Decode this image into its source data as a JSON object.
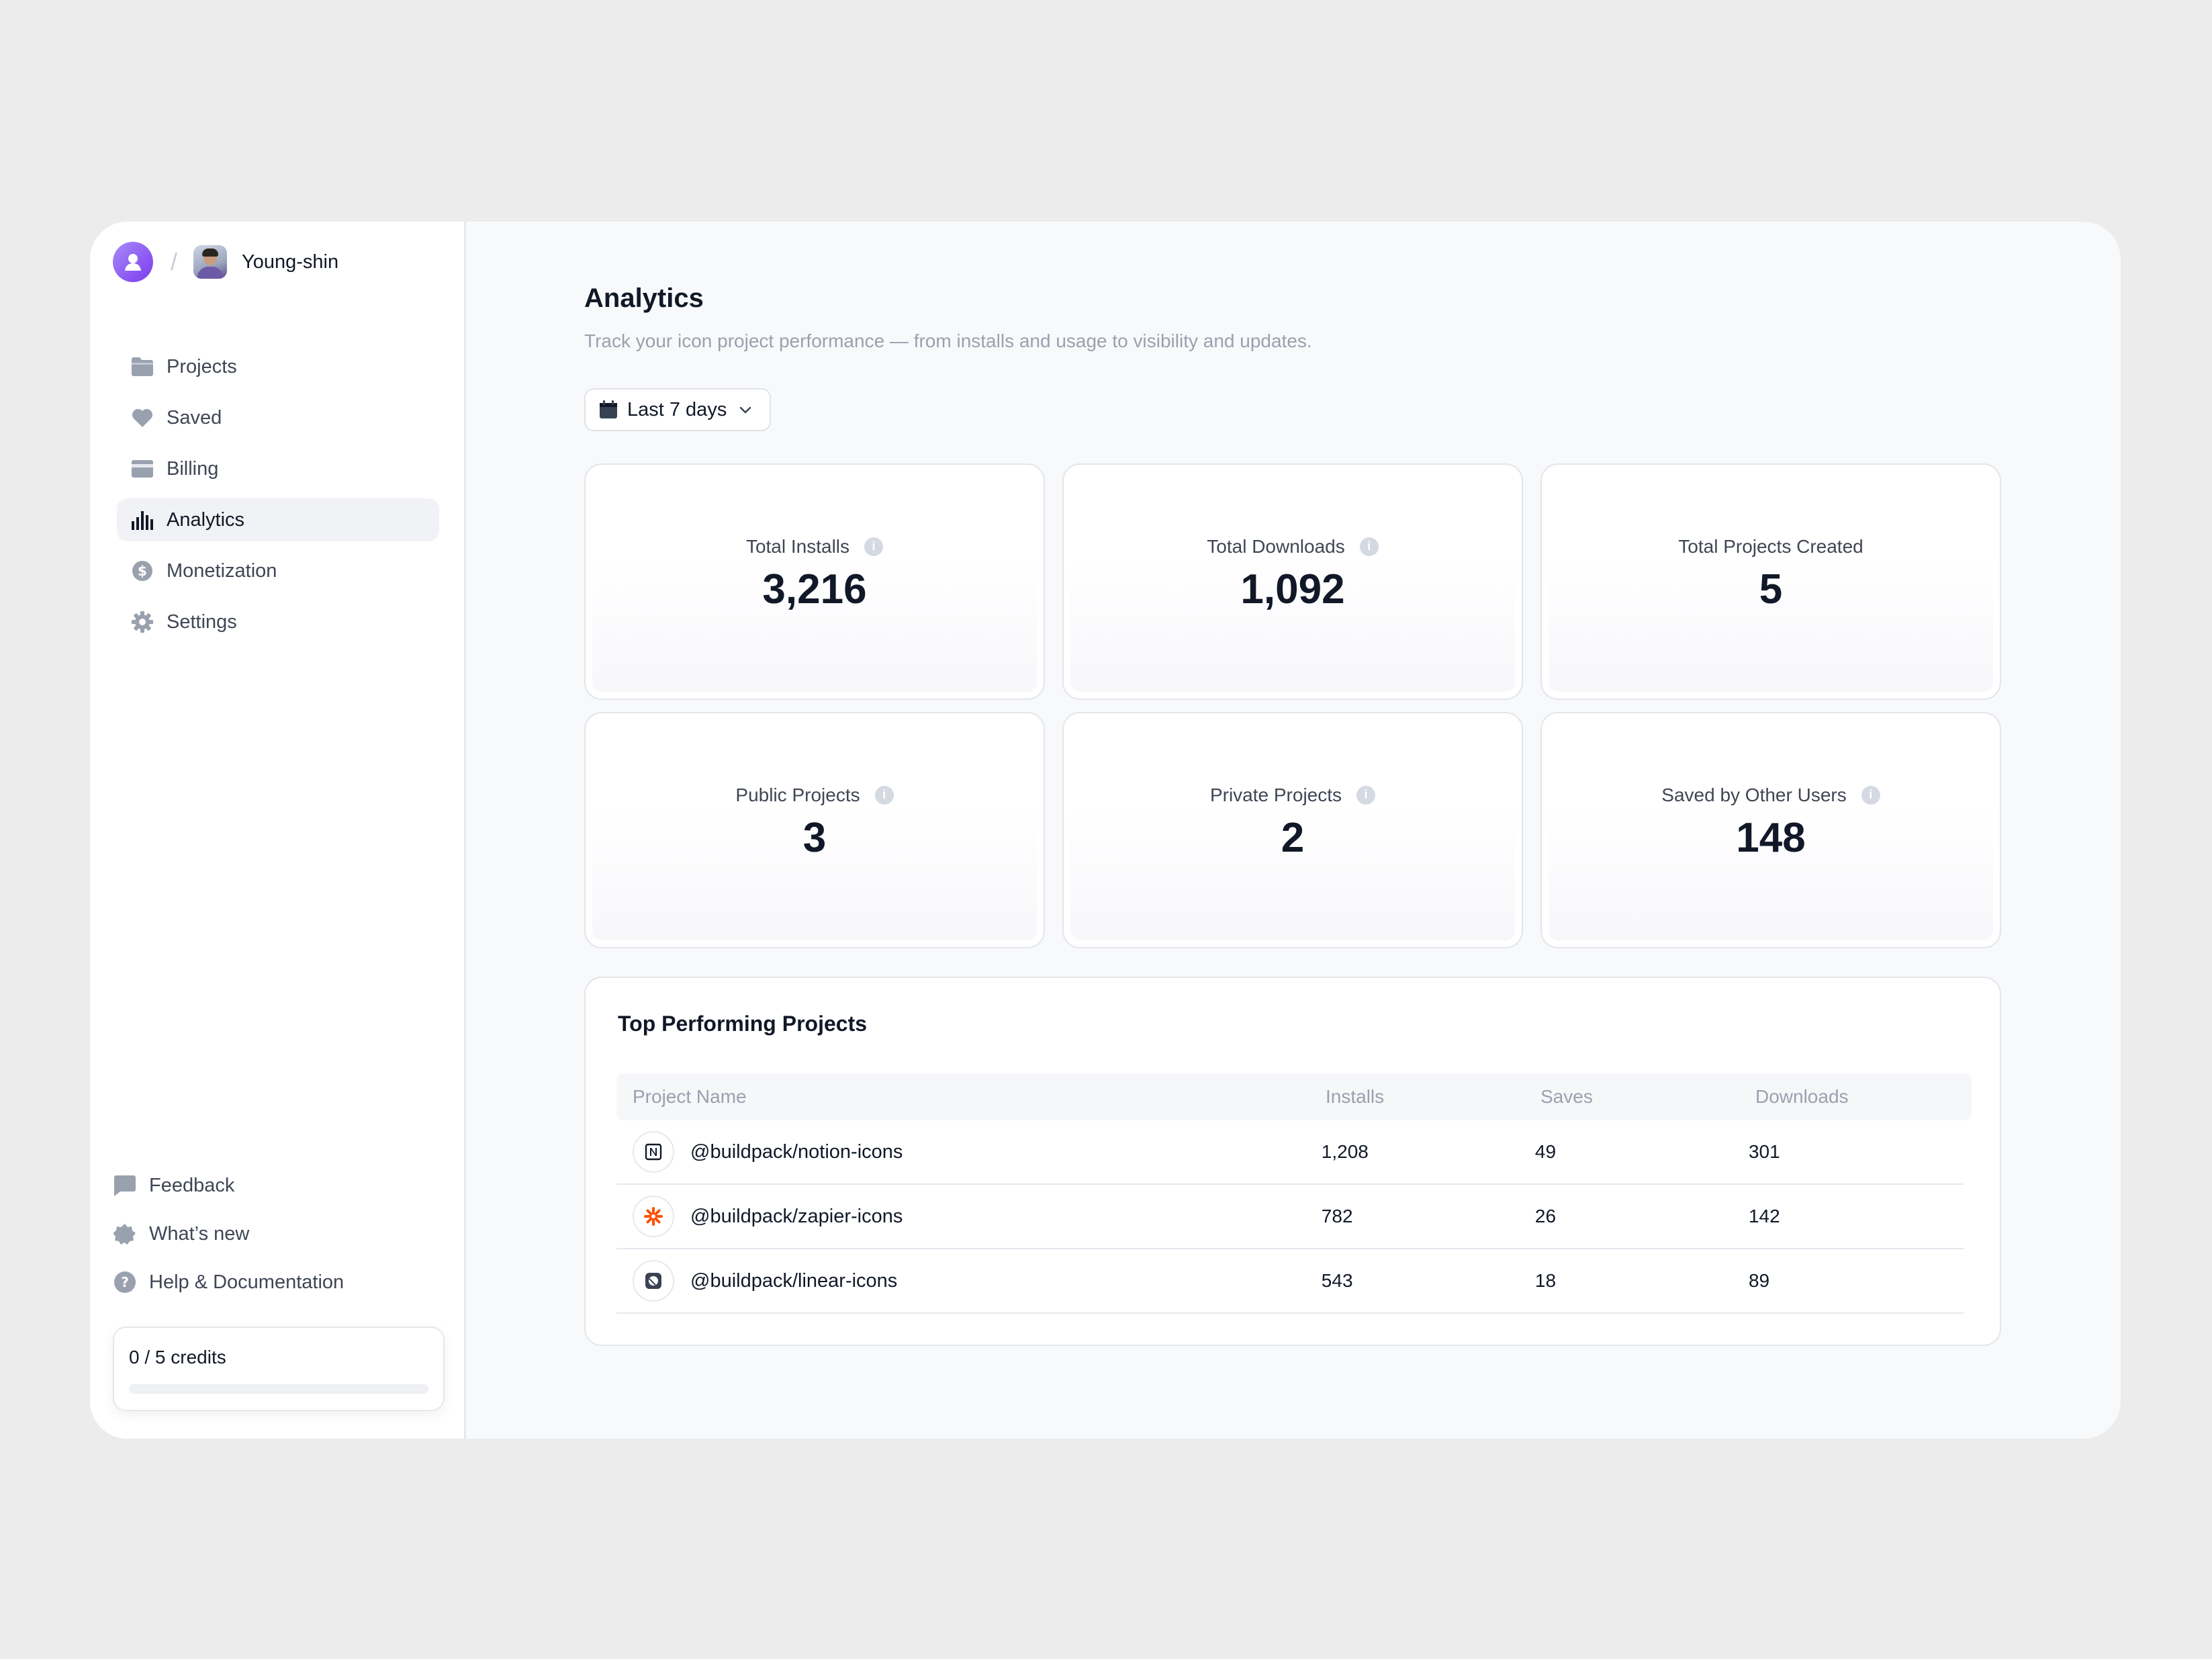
{
  "user": {
    "name": "Young-shin",
    "separator": "/"
  },
  "nav": [
    {
      "label": "Projects",
      "icon": "folder-icon"
    },
    {
      "label": "Saved",
      "icon": "heart-icon"
    },
    {
      "label": "Billing",
      "icon": "credit-card-icon"
    },
    {
      "label": "Analytics",
      "icon": "bar-chart-icon",
      "active": true
    },
    {
      "label": "Monetization",
      "icon": "dollar-circle-icon"
    },
    {
      "label": "Settings",
      "icon": "gear-icon"
    }
  ],
  "bottom_links": [
    {
      "label": "Feedback",
      "icon": "chat-icon"
    },
    {
      "label": "What’s new",
      "icon": "badge-star-icon"
    },
    {
      "label": "Help & Documentation",
      "icon": "help-circle-icon"
    }
  ],
  "credits": {
    "label": "0 / 5 credits",
    "used": 0,
    "total": 5
  },
  "page": {
    "title": "Analytics",
    "subtitle": "Track your icon project performance — from installs and usage to visibility and updates.",
    "range_label": "Last 7 days"
  },
  "stats": [
    {
      "label": "Total Installs",
      "value": "3,216",
      "info": true
    },
    {
      "label": "Total Downloads",
      "value": "1,092",
      "info": true
    },
    {
      "label": "Total Projects Created",
      "value": "5",
      "info": false
    },
    {
      "label": "Public Projects",
      "value": "3",
      "info": true
    },
    {
      "label": "Private Projects",
      "value": "2",
      "info": true
    },
    {
      "label": "Saved by Other Users",
      "value": "148",
      "info": true
    }
  ],
  "table": {
    "title": "Top Performing Projects",
    "columns": [
      "Project Name",
      "Installs",
      "Saves",
      "Downloads"
    ],
    "rows": [
      {
        "name": "@buildpack/notion-icons",
        "icon": "notion-logo-icon",
        "installs": "1,208",
        "saves": "49",
        "downloads": "301"
      },
      {
        "name": "@buildpack/zapier-icons",
        "icon": "zapier-logo-icon",
        "installs": "782",
        "saves": "26",
        "downloads": "142"
      },
      {
        "name": "@buildpack/linear-icons",
        "icon": "linear-logo-icon",
        "installs": "543",
        "saves": "18",
        "downloads": "89"
      }
    ]
  },
  "colors": {
    "accent": "#7c3aed",
    "zapier": "#ff4f00",
    "background": "#ececec"
  }
}
